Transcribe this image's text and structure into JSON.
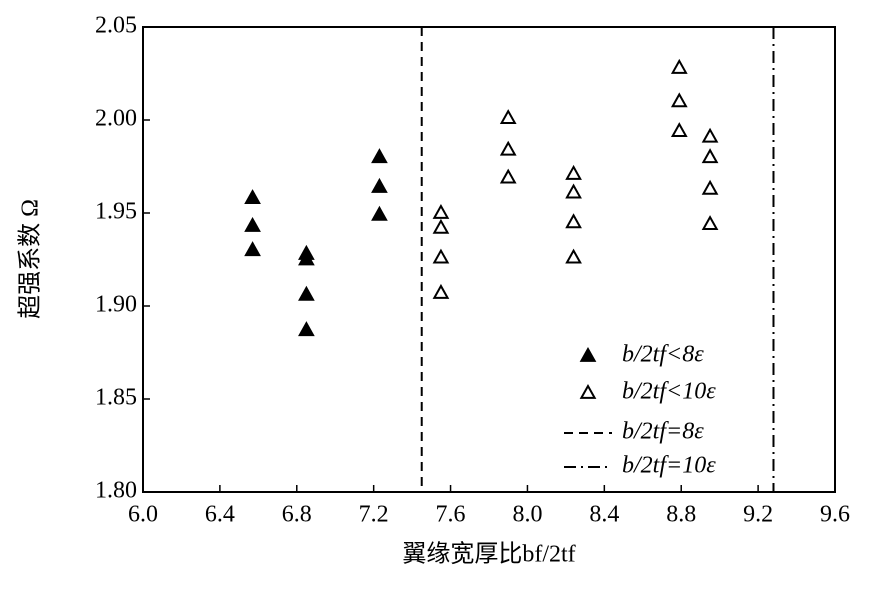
{
  "chart_data": {
    "type": "scatter",
    "x_label": "翼缘宽厚比bf/2tf",
    "y_label": "超强系数 Ω",
    "xlim": [
      6.0,
      9.6
    ],
    "xticks": [
      6.0,
      6.4,
      6.8,
      7.2,
      7.6,
      8.0,
      8.4,
      8.8,
      9.2,
      9.6
    ],
    "ylim": [
      1.8,
      2.05
    ],
    "yticks": [
      1.8,
      1.85,
      1.9,
      1.95,
      2.0,
      2.05
    ],
    "series": [
      {
        "name": "b/2tf<8ε",
        "color": "#000000",
        "filled": true,
        "x": [
          6.57,
          6.57,
          6.57,
          6.85,
          6.85,
          6.85,
          6.85,
          7.23,
          7.23,
          7.23
        ],
        "values": [
          1.958,
          1.943,
          1.93,
          1.928,
          1.925,
          1.906,
          1.887,
          1.98,
          1.964,
          1.949
        ]
      },
      {
        "name": "b/2tf<10ε",
        "color": "#000000",
        "filled": false,
        "x": [
          7.55,
          7.55,
          7.55,
          7.55,
          7.9,
          7.9,
          7.9,
          8.24,
          8.24,
          8.24,
          8.24,
          8.79,
          8.79,
          8.79,
          8.95,
          8.95,
          8.95,
          8.95
        ],
        "values": [
          1.95,
          1.942,
          1.926,
          1.907,
          2.001,
          1.984,
          1.969,
          1.971,
          1.961,
          1.945,
          1.926,
          2.028,
          2.01,
          1.994,
          1.991,
          1.98,
          1.963,
          1.944
        ]
      }
    ],
    "vlines": [
      {
        "name": "b/2tf=8ε",
        "x": 7.45,
        "dash": "dashed"
      },
      {
        "name": "b/2tf=10ε",
        "x": 9.28,
        "dash": "dashdot"
      }
    ]
  }
}
